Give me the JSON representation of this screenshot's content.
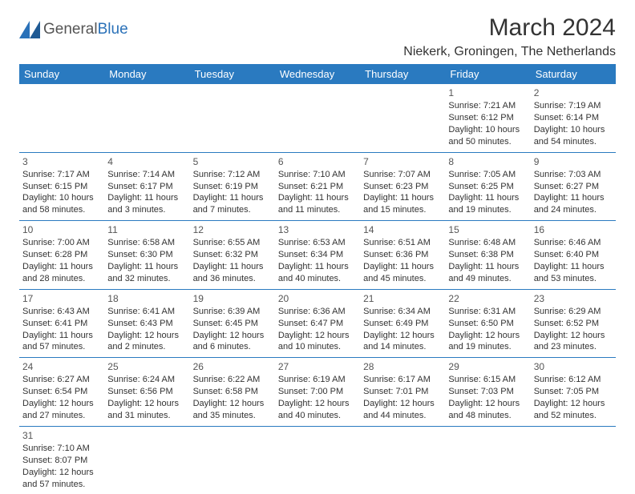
{
  "logo": {
    "text_general": "General",
    "text_blue": "Blue",
    "triangle_color": "#2a71b8"
  },
  "title": "March 2024",
  "location": "Niekerk, Groningen, The Netherlands",
  "header_bg": "#2a7ac0",
  "header_fg": "#ffffff",
  "border_color": "#2a7ac0",
  "weekdays": [
    "Sunday",
    "Monday",
    "Tuesday",
    "Wednesday",
    "Thursday",
    "Friday",
    "Saturday"
  ],
  "first_weekday_index": 5,
  "days": [
    {
      "n": 1,
      "sunrise": "7:21 AM",
      "sunset": "6:12 PM",
      "daylight": "10 hours and 50 minutes."
    },
    {
      "n": 2,
      "sunrise": "7:19 AM",
      "sunset": "6:14 PM",
      "daylight": "10 hours and 54 minutes."
    },
    {
      "n": 3,
      "sunrise": "7:17 AM",
      "sunset": "6:15 PM",
      "daylight": "10 hours and 58 minutes."
    },
    {
      "n": 4,
      "sunrise": "7:14 AM",
      "sunset": "6:17 PM",
      "daylight": "11 hours and 3 minutes."
    },
    {
      "n": 5,
      "sunrise": "7:12 AM",
      "sunset": "6:19 PM",
      "daylight": "11 hours and 7 minutes."
    },
    {
      "n": 6,
      "sunrise": "7:10 AM",
      "sunset": "6:21 PM",
      "daylight": "11 hours and 11 minutes."
    },
    {
      "n": 7,
      "sunrise": "7:07 AM",
      "sunset": "6:23 PM",
      "daylight": "11 hours and 15 minutes."
    },
    {
      "n": 8,
      "sunrise": "7:05 AM",
      "sunset": "6:25 PM",
      "daylight": "11 hours and 19 minutes."
    },
    {
      "n": 9,
      "sunrise": "7:03 AM",
      "sunset": "6:27 PM",
      "daylight": "11 hours and 24 minutes."
    },
    {
      "n": 10,
      "sunrise": "7:00 AM",
      "sunset": "6:28 PM",
      "daylight": "11 hours and 28 minutes."
    },
    {
      "n": 11,
      "sunrise": "6:58 AM",
      "sunset": "6:30 PM",
      "daylight": "11 hours and 32 minutes."
    },
    {
      "n": 12,
      "sunrise": "6:55 AM",
      "sunset": "6:32 PM",
      "daylight": "11 hours and 36 minutes."
    },
    {
      "n": 13,
      "sunrise": "6:53 AM",
      "sunset": "6:34 PM",
      "daylight": "11 hours and 40 minutes."
    },
    {
      "n": 14,
      "sunrise": "6:51 AM",
      "sunset": "6:36 PM",
      "daylight": "11 hours and 45 minutes."
    },
    {
      "n": 15,
      "sunrise": "6:48 AM",
      "sunset": "6:38 PM",
      "daylight": "11 hours and 49 minutes."
    },
    {
      "n": 16,
      "sunrise": "6:46 AM",
      "sunset": "6:40 PM",
      "daylight": "11 hours and 53 minutes."
    },
    {
      "n": 17,
      "sunrise": "6:43 AM",
      "sunset": "6:41 PM",
      "daylight": "11 hours and 57 minutes."
    },
    {
      "n": 18,
      "sunrise": "6:41 AM",
      "sunset": "6:43 PM",
      "daylight": "12 hours and 2 minutes."
    },
    {
      "n": 19,
      "sunrise": "6:39 AM",
      "sunset": "6:45 PM",
      "daylight": "12 hours and 6 minutes."
    },
    {
      "n": 20,
      "sunrise": "6:36 AM",
      "sunset": "6:47 PM",
      "daylight": "12 hours and 10 minutes."
    },
    {
      "n": 21,
      "sunrise": "6:34 AM",
      "sunset": "6:49 PM",
      "daylight": "12 hours and 14 minutes."
    },
    {
      "n": 22,
      "sunrise": "6:31 AM",
      "sunset": "6:50 PM",
      "daylight": "12 hours and 19 minutes."
    },
    {
      "n": 23,
      "sunrise": "6:29 AM",
      "sunset": "6:52 PM",
      "daylight": "12 hours and 23 minutes."
    },
    {
      "n": 24,
      "sunrise": "6:27 AM",
      "sunset": "6:54 PM",
      "daylight": "12 hours and 27 minutes."
    },
    {
      "n": 25,
      "sunrise": "6:24 AM",
      "sunset": "6:56 PM",
      "daylight": "12 hours and 31 minutes."
    },
    {
      "n": 26,
      "sunrise": "6:22 AM",
      "sunset": "6:58 PM",
      "daylight": "12 hours and 35 minutes."
    },
    {
      "n": 27,
      "sunrise": "6:19 AM",
      "sunset": "7:00 PM",
      "daylight": "12 hours and 40 minutes."
    },
    {
      "n": 28,
      "sunrise": "6:17 AM",
      "sunset": "7:01 PM",
      "daylight": "12 hours and 44 minutes."
    },
    {
      "n": 29,
      "sunrise": "6:15 AM",
      "sunset": "7:03 PM",
      "daylight": "12 hours and 48 minutes."
    },
    {
      "n": 30,
      "sunrise": "6:12 AM",
      "sunset": "7:05 PM",
      "daylight": "12 hours and 52 minutes."
    },
    {
      "n": 31,
      "sunrise": "7:10 AM",
      "sunset": "8:07 PM",
      "daylight": "12 hours and 57 minutes."
    }
  ],
  "labels": {
    "sunrise": "Sunrise:",
    "sunset": "Sunset:",
    "daylight": "Daylight:"
  }
}
